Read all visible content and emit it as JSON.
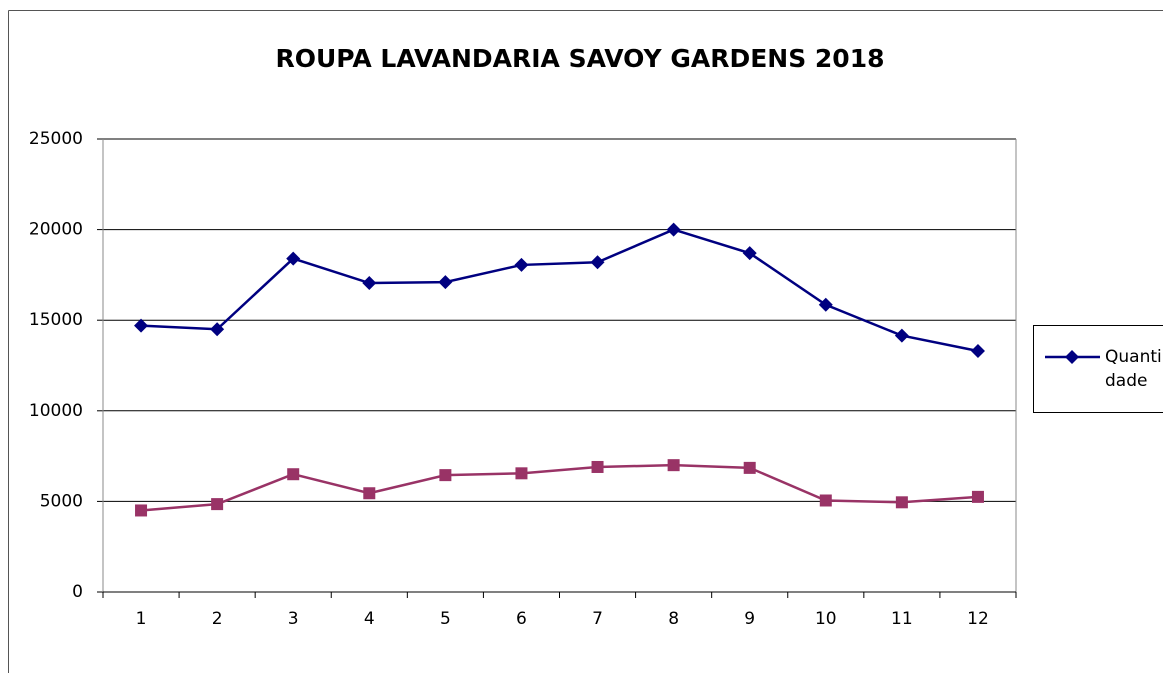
{
  "chart_data": {
    "type": "line",
    "title": "ROUPA LAVANDARIA SAVOY GARDENS 2018",
    "categories": [
      "1",
      "2",
      "3",
      "4",
      "5",
      "6",
      "7",
      "8",
      "9",
      "10",
      "11",
      "12"
    ],
    "series": [
      {
        "name": "Quantidade",
        "color": "#000080",
        "marker": "diamond",
        "values": [
          14700,
          14500,
          18400,
          17050,
          17100,
          18050,
          18200,
          20000,
          18700,
          15850,
          14150,
          13300
        ]
      },
      {
        "color": "#993366",
        "marker": "square",
        "values": [
          4500,
          4850,
          6500,
          5450,
          6450,
          6550,
          6900,
          7000,
          6850,
          5050,
          4950,
          5250
        ]
      }
    ],
    "ylim": [
      0,
      25000
    ],
    "yticks": [
      0,
      5000,
      10000,
      15000,
      20000,
      25000
    ],
    "grid": true,
    "legend": "right"
  }
}
